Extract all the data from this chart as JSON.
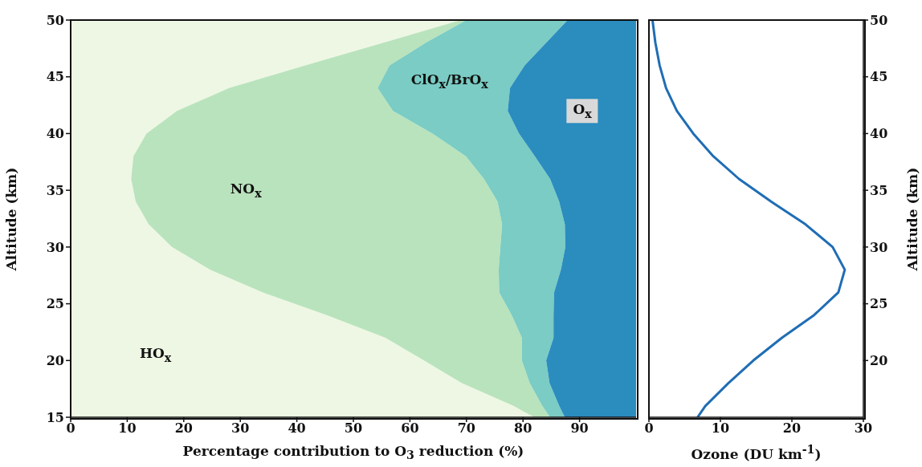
{
  "chart_data": [
    {
      "type": "area",
      "orientation": "horizontal",
      "stacked": true,
      "xlabel": "Percentage contribution to O$_{3}$ reduction (%)",
      "ylabel": "Altitude (km)",
      "x": [
        15,
        16,
        18,
        20,
        22,
        24,
        26,
        28,
        30,
        32,
        34,
        36,
        38,
        40,
        42,
        44,
        46,
        48,
        50
      ],
      "series": [
        {
          "name": "HO$_{x}$",
          "color": "#eef7e4",
          "values": [
            82,
            78.3,
            69.2,
            62.5,
            55.7,
            45.3,
            34,
            24.7,
            17.9,
            13.8,
            11.5,
            10.7,
            11.1,
            13.4,
            18.8,
            28,
            41.5,
            55.3,
            69
          ]
        },
        {
          "name": "NO$_{x}$",
          "color": "#b9e3bc",
          "values": [
            2.8,
            5.1,
            12,
            17.3,
            24.1,
            32.7,
            41.8,
            51,
            58.1,
            62.5,
            64,
            62.4,
            58.8,
            50.6,
            38.2,
            26.3,
            14.9,
            7.5,
            1
          ]
        },
        {
          "name": "ClO$_{x}$/BrO$_{x}$",
          "color": "#7accc4",
          "values": [
            2.6,
            3,
            3.5,
            4.3,
            5.6,
            7.4,
            9.7,
            11,
            11.5,
            11.1,
            10.9,
            11.7,
            12.2,
            15.3,
            20.3,
            23.4,
            23.9,
            21.3,
            17.9
          ]
        },
        {
          "name": "O$_{x}$",
          "color": "#2b8cbe",
          "values": [
            12.6,
            13.6,
            15.3,
            15.9,
            14.6,
            14.6,
            14.5,
            13.3,
            12.5,
            12.6,
            13.6,
            15.2,
            17.9,
            20.7,
            22.7,
            22.3,
            19.7,
            15.9,
            12.1
          ]
        }
      ],
      "xlim": [
        0,
        100
      ],
      "xticks": [
        0,
        10,
        20,
        30,
        40,
        50,
        60,
        70,
        80,
        90
      ],
      "ylim": [
        15,
        50
      ],
      "yticks": [
        15,
        20,
        25,
        30,
        35,
        40,
        45,
        50
      ]
    },
    {
      "type": "line",
      "orientation": "horizontal",
      "xlabel": "Ozone (DU km$^{-1}$)",
      "ylabel": "Altitude (km)",
      "x": [
        15,
        16,
        18,
        20,
        22,
        24,
        26,
        28,
        30,
        32,
        34,
        36,
        38,
        40,
        42,
        44,
        46,
        48,
        50
      ],
      "series": [
        {
          "color": "#1f6db5",
          "values": [
            6.8,
            7.9,
            11.1,
            14.6,
            18.6,
            23.1,
            26.5,
            27.4,
            25.7,
            21.9,
            17.1,
            12.6,
            9,
            6.2,
            3.9,
            2.4,
            1.5,
            0.9,
            0.5
          ]
        }
      ],
      "xlim": [
        0,
        30
      ],
      "xticks": [
        0,
        10,
        20,
        30
      ],
      "ylim": [
        15,
        50
      ],
      "yticks": [
        20,
        25,
        30,
        35,
        40,
        45,
        50
      ]
    }
  ]
}
